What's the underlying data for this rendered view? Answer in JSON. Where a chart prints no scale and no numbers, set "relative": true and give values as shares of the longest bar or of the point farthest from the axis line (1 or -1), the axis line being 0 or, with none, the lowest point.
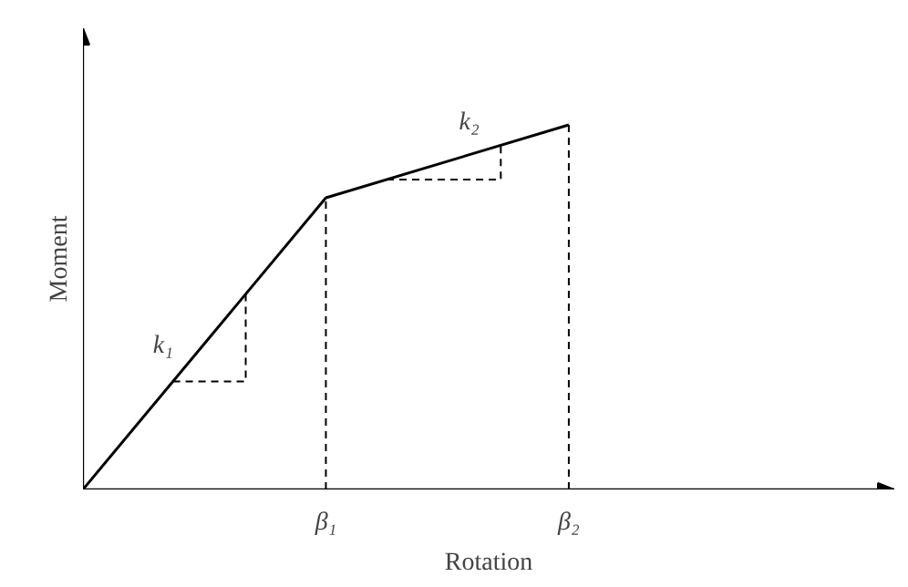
{
  "chart_data": {
    "type": "line",
    "relative": true,
    "xlabel": "Rotation",
    "ylabel": "Moment",
    "categories": [
      null,
      "β₁",
      "β₂"
    ],
    "series": [
      {
        "color": "#000000",
        "values": [
          0,
          0.8,
          1
        ]
      }
    ],
    "annotations": [
      "k₁",
      "k₂"
    ],
    "grid": "x",
    "marker": "none",
    "line_style": "solid"
  }
}
